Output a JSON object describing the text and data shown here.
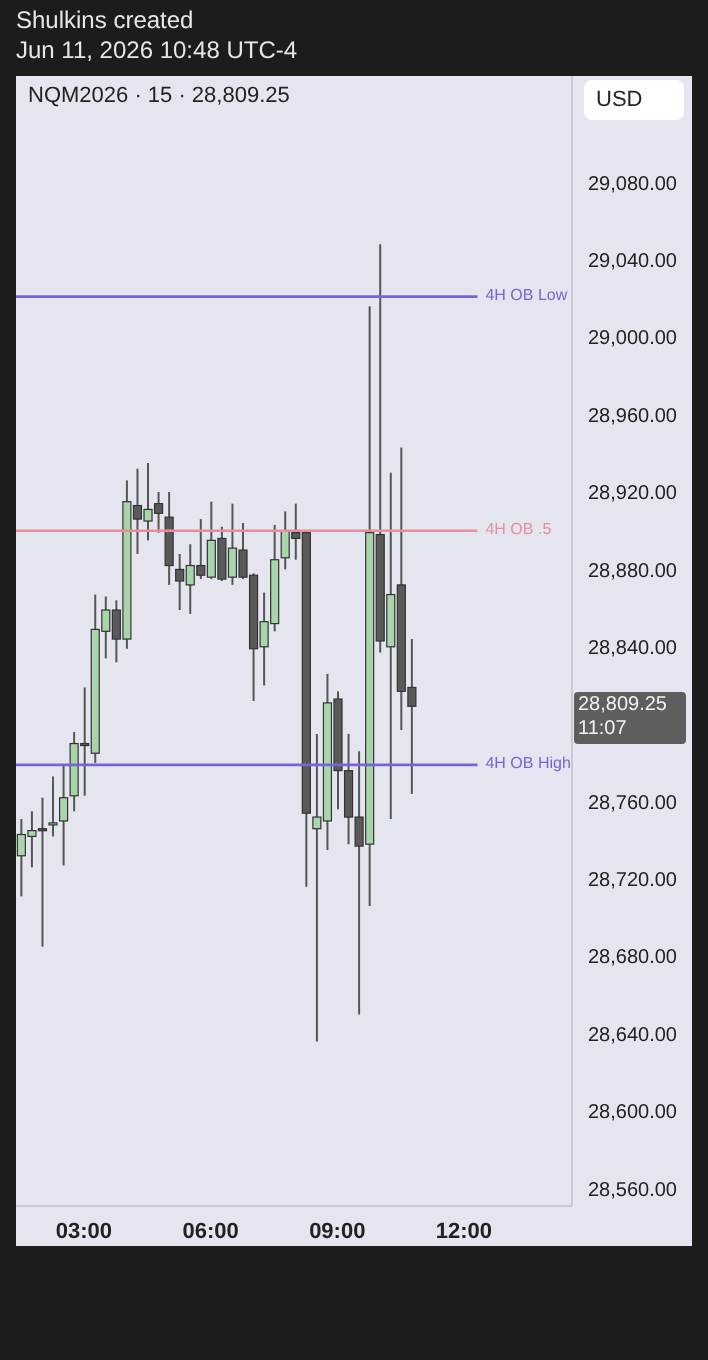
{
  "chart_data": {
    "type": "candlestick",
    "title": "Shulkins created",
    "subtitle": "Jun 11, 2026 10:48 UTC-4",
    "annotations": [
      "NQM2026 · 15 · 28,809.25",
      "USD",
      "28,809.25 11:07"
    ],
    "x": [
      1.5,
      1.75,
      2,
      2.25,
      2.5,
      2.75,
      3,
      3.25,
      3.5,
      3.75,
      4,
      4.25,
      4.5,
      4.75,
      5,
      5.25,
      5.5,
      5.75,
      6,
      6.25,
      6.5,
      6.75,
      7,
      7.25,
      7.5,
      7.75,
      8,
      8.25,
      8.5,
      8.75,
      9,
      9.25,
      9.5,
      9.75,
      10,
      10.25,
      10.5,
      10.75
    ],
    "ohlc": [
      [
        28732,
        28751,
        28711,
        28743
      ],
      [
        28742,
        28755,
        28726,
        28745
      ],
      [
        28746,
        28762,
        28685,
        28745
      ],
      [
        28748,
        28773,
        28742,
        28749
      ],
      [
        28750,
        28779,
        28727,
        28762
      ],
      [
        28763,
        28796,
        28755,
        28790
      ],
      [
        28790,
        28819,
        28763,
        28789
      ],
      [
        28785,
        28867,
        28780,
        28849
      ],
      [
        28848,
        28866,
        28834,
        28859
      ],
      [
        28859,
        28864,
        28832,
        28844
      ],
      [
        28844,
        28926,
        28839,
        28915
      ],
      [
        28913,
        28932,
        28888,
        28906
      ],
      [
        28905,
        28935,
        28895,
        28911
      ],
      [
        28914,
        28920,
        28899,
        28909
      ],
      [
        28907,
        28920,
        28872,
        28882
      ],
      [
        28880,
        28888,
        28859,
        28874
      ],
      [
        28872,
        28893,
        28857,
        28882
      ],
      [
        28882,
        28906,
        28875,
        28877
      ],
      [
        28876,
        28915,
        28875,
        28895
      ],
      [
        28896,
        28902,
        28874,
        28875
      ],
      [
        28876,
        28914,
        28872,
        28891
      ],
      [
        28890,
        28904,
        28875,
        28876
      ],
      [
        28877,
        28878,
        28812,
        28839
      ],
      [
        28840,
        28868,
        28820,
        28853
      ],
      [
        28852,
        28903,
        28848,
        28885
      ],
      [
        28886,
        28910,
        28880,
        28900
      ],
      [
        28899,
        28914,
        28885,
        28896
      ],
      [
        28899,
        28900,
        28716,
        28754
      ],
      [
        28746,
        28795,
        28636,
        28752
      ],
      [
        28750,
        28826,
        28735,
        28811
      ],
      [
        28813,
        28817,
        28756,
        28776
      ],
      [
        28776,
        28795,
        28738,
        28752
      ],
      [
        28752,
        28786,
        28650,
        28737
      ],
      [
        28738,
        29016,
        28706,
        28899
      ],
      [
        28898,
        29048,
        28837,
        28843
      ],
      [
        28840,
        28930,
        28751,
        28867
      ],
      [
        28872,
        28943,
        28797,
        28817
      ],
      [
        28819,
        28844,
        28764,
        28809.25
      ]
    ],
    "colors": [
      "#a8d5a9",
      "#a8d5a9",
      "#5a5a5a",
      "#a8d5a9",
      "#a8d5a9",
      "#a8d5a9",
      "#5a5a5a",
      "#a8d5a9",
      "#a8d5a9",
      "#5a5a5a",
      "#a8d5a9",
      "#5a5a5a",
      "#a8d5a9",
      "#5a5a5a",
      "#5a5a5a",
      "#5a5a5a",
      "#a8d5a9",
      "#5a5a5a",
      "#a8d5a9",
      "#5a5a5a",
      "#a8d5a9",
      "#5a5a5a",
      "#5a5a5a",
      "#a8d5a9",
      "#a8d5a9",
      "#a8d5a9",
      "#5a5a5a",
      "#5a5a5a",
      "#a8d5a9",
      "#a8d5a9",
      "#5a5a5a",
      "#5a5a5a",
      "#5a5a5a",
      "#a8d5a9",
      "#5a5a5a",
      "#a8d5a9",
      "#5a5a5a",
      "#5a5a5a"
    ],
    "xlim": [
      1.39,
      14.56
    ],
    "xticks": [
      {
        "value": 3,
        "label": "03:00"
      },
      {
        "value": 6,
        "label": "06:00"
      },
      {
        "value": 9,
        "label": "09:00"
      },
      {
        "value": 12,
        "label": "12:00"
      }
    ],
    "ylim": [
      28551,
      29135
    ],
    "yticks": [
      {
        "value": 28560,
        "label": "28,560.00"
      },
      {
        "value": 28600,
        "label": "28,600.00"
      },
      {
        "value": 28640,
        "label": "28,640.00"
      },
      {
        "value": 28680,
        "label": "28,680.00"
      },
      {
        "value": 28720,
        "label": "28,720.00"
      },
      {
        "value": 28760,
        "label": "28,760.00"
      },
      {
        "value": 28840,
        "label": "28,840.00"
      },
      {
        "value": 28880,
        "label": "28,880.00"
      },
      {
        "value": 28920,
        "label": "28,920.00"
      },
      {
        "value": 28960,
        "label": "28,960.00"
      },
      {
        "value": 29000,
        "label": "29,000.00"
      },
      {
        "value": 29040,
        "label": "29,040.00"
      },
      {
        "value": 29080,
        "label": "29,080.00"
      }
    ],
    "ref_lines": [
      {
        "axis": "y",
        "value": 29021,
        "label": "4H OB Low",
        "color": "#7a63d6"
      },
      {
        "axis": "y",
        "value": 28900,
        "label": "4H OB .5",
        "color": "#e8909a"
      },
      {
        "axis": "y",
        "value": 28779,
        "label": "4H OB High",
        "color": "#7a63d6"
      }
    ],
    "grid": false
  }
}
